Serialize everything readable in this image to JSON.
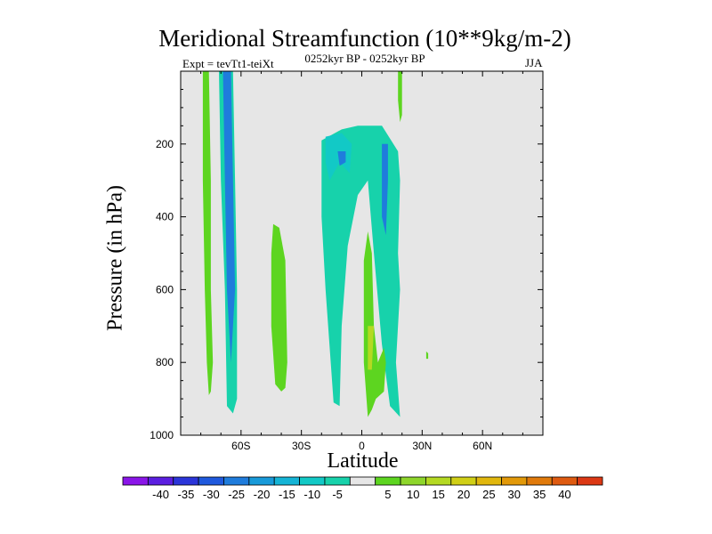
{
  "chart_data": {
    "type": "heatmap",
    "title": "Meridional Streamfunction (10**9kg/m-2)",
    "subtitle_left": "Expt = tevTt1-teiXt",
    "subtitle_center": "0252kyr BP - 0252kyr BP",
    "subtitle_right": "JJA",
    "xlabel": "Latitude",
    "ylabel": "Pressure (in hPa)",
    "xlim": [
      -90,
      90
    ],
    "ylim": [
      1000,
      0
    ],
    "x_ticks": [
      {
        "value": -60,
        "label": "60S"
      },
      {
        "value": -30,
        "label": "30S"
      },
      {
        "value": 0,
        "label": "0"
      },
      {
        "value": 30,
        "label": "30N"
      },
      {
        "value": 60,
        "label": "60N"
      }
    ],
    "y_ticks": [
      {
        "value": 200,
        "label": "200"
      },
      {
        "value": 400,
        "label": "400"
      },
      {
        "value": 600,
        "label": "600"
      },
      {
        "value": 800,
        "label": "800"
      },
      {
        "value": 1000,
        "label": "1000"
      }
    ],
    "background_color": "#e6e6e6",
    "colorbar": {
      "colors": [
        "#8a15e8",
        "#5b1ee0",
        "#2b35d9",
        "#1f59dd",
        "#1f7cdc",
        "#189ad9",
        "#15b4d6",
        "#12c9c6",
        "#17d2ab",
        "#e6e6e6",
        "#5dd520",
        "#8ed62b",
        "#b4d922",
        "#d0cf16",
        "#e1b70d",
        "#e29909",
        "#e07a0b",
        "#de5a10",
        "#dc3814"
      ],
      "labels": [
        "-40",
        "-35",
        "-30",
        "-25",
        "-20",
        "-15",
        "-10",
        "-5",
        "5",
        "10",
        "15",
        "20",
        "25",
        "30",
        "35",
        "40"
      ]
    },
    "regions": [
      {
        "name": "green-band-far-south",
        "color": "#5dd520",
        "points": [
          [
            -79,
            0
          ],
          [
            -76,
            0
          ],
          [
            -75,
            300
          ],
          [
            -75,
            600
          ],
          [
            -74,
            800
          ],
          [
            -75,
            880
          ],
          [
            -76,
            890
          ],
          [
            -77,
            800
          ],
          [
            -78,
            600
          ],
          [
            -79,
            300
          ]
        ]
      },
      {
        "name": "cyan-band-west",
        "color": "#17d2ab",
        "points": [
          [
            -71,
            0
          ],
          [
            -64,
            0
          ],
          [
            -63,
            300
          ],
          [
            -62,
            600
          ],
          [
            -62,
            900
          ],
          [
            -64,
            940
          ],
          [
            -67,
            920
          ],
          [
            -68,
            600
          ],
          [
            -70,
            300
          ]
        ]
      },
      {
        "name": "blue-core-west",
        "color": "#1f7cdc",
        "points": [
          [
            -69,
            0
          ],
          [
            -65,
            0
          ],
          [
            -64,
            300
          ],
          [
            -63,
            600
          ],
          [
            -65,
            800
          ],
          [
            -67,
            600
          ],
          [
            -68,
            300
          ]
        ]
      },
      {
        "name": "green-band-south-mid",
        "color": "#5dd520",
        "points": [
          [
            -44,
            420
          ],
          [
            -41,
            430
          ],
          [
            -38,
            520
          ],
          [
            -37,
            800
          ],
          [
            -38,
            870
          ],
          [
            -40,
            880
          ],
          [
            -43,
            860
          ],
          [
            -45,
            700
          ],
          [
            -45,
            500
          ]
        ]
      },
      {
        "name": "cyan-cell-tropics",
        "color": "#17d2ab",
        "points": [
          [
            -20,
            190
          ],
          [
            -10,
            160
          ],
          [
            -2,
            150
          ],
          [
            10,
            150
          ],
          [
            18,
            220
          ],
          [
            19,
            300
          ],
          [
            18,
            500
          ],
          [
            19,
            600
          ],
          [
            17,
            800
          ],
          [
            19,
            950
          ],
          [
            14,
            920
          ],
          [
            10,
            750
          ],
          [
            6,
            500
          ],
          [
            3,
            300
          ],
          [
            -2,
            340
          ],
          [
            -7,
            480
          ],
          [
            -10,
            700
          ],
          [
            -11,
            920
          ],
          [
            -14,
            910
          ],
          [
            -18,
            600
          ],
          [
            -20,
            400
          ]
        ]
      },
      {
        "name": "cyan-cell-south-upper",
        "color": "#12c9c6",
        "points": [
          [
            -18,
            180
          ],
          [
            -10,
            170
          ],
          [
            -5,
            200
          ],
          [
            -6,
            280
          ],
          [
            -11,
            250
          ],
          [
            -16,
            300
          ],
          [
            -18,
            250
          ]
        ]
      },
      {
        "name": "blue-core-south",
        "color": "#1f7cdc",
        "points": [
          [
            -12,
            220
          ],
          [
            -8,
            220
          ],
          [
            -8,
            250
          ],
          [
            -11,
            260
          ]
        ]
      },
      {
        "name": "blue-core-north",
        "color": "#1f7cdc",
        "points": [
          [
            10,
            200
          ],
          [
            13,
            200
          ],
          [
            13,
            300
          ],
          [
            12,
            450
          ],
          [
            10,
            400
          ]
        ]
      },
      {
        "name": "green-band-equator",
        "color": "#5dd520",
        "points": [
          [
            1,
            520
          ],
          [
            3,
            440
          ],
          [
            5,
            500
          ],
          [
            6,
            700
          ],
          [
            8,
            800
          ],
          [
            11,
            760
          ],
          [
            12,
            800
          ],
          [
            11,
            880
          ],
          [
            7,
            900
          ],
          [
            5,
            930
          ],
          [
            3,
            950
          ],
          [
            1,
            800
          ]
        ]
      },
      {
        "name": "yellow-core-equator",
        "color": "#b4d922",
        "points": [
          [
            3,
            700
          ],
          [
            6,
            700
          ],
          [
            5,
            820
          ],
          [
            3,
            820
          ]
        ]
      },
      {
        "name": "green-band-north-top",
        "color": "#5dd520",
        "points": [
          [
            18,
            0
          ],
          [
            20,
            0
          ],
          [
            20,
            120
          ],
          [
            19,
            140
          ],
          [
            18,
            80
          ]
        ]
      },
      {
        "name": "green-dot-north",
        "color": "#5dd520",
        "points": [
          [
            32,
            770
          ],
          [
            33,
            775
          ],
          [
            33,
            790
          ],
          [
            32,
            790
          ]
        ]
      }
    ]
  }
}
